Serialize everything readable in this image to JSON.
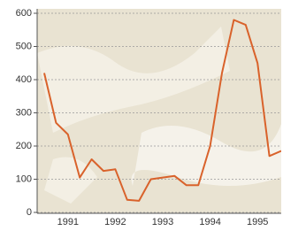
{
  "chart_data": {
    "type": "line",
    "x": [
      1991.0,
      1991.25,
      1991.5,
      1991.75,
      1992.0,
      1992.25,
      1992.5,
      1992.75,
      1993.0,
      1993.25,
      1993.5,
      1993.75,
      1994.0,
      1994.25,
      1994.5,
      1994.75,
      1995.0,
      1995.25,
      1995.5,
      1995.75,
      1996.0
    ],
    "series": [
      {
        "name": null,
        "color": "#d9622b",
        "values": [
          420,
          270,
          235,
          105,
          160,
          125,
          130,
          38,
          35,
          100,
          105,
          110,
          82,
          82,
          200,
          420,
          580,
          565,
          450,
          170,
          185
        ]
      }
    ],
    "xlim": [
      1990.85,
      1996.0
    ],
    "xticks": [
      {
        "value": 1991.5,
        "label": "1991"
      },
      {
        "value": 1992.5,
        "label": "1992"
      },
      {
        "value": 1993.5,
        "label": "1993"
      },
      {
        "value": 1994.5,
        "label": "1994"
      },
      {
        "value": 1995.5,
        "label": "1995"
      }
    ],
    "ylim": [
      0,
      600
    ],
    "yticks": [
      0,
      100,
      200,
      300,
      400,
      500,
      600
    ],
    "grid": true
  }
}
